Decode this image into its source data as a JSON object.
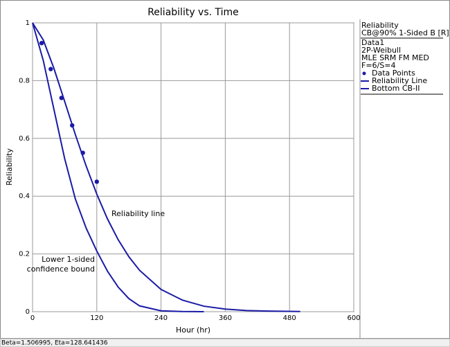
{
  "chart_data": {
    "type": "line",
    "title": "Reliability vs. Time",
    "x_label": "Hour (hr)",
    "y_label": "Reliability",
    "xlim": [
      0,
      600
    ],
    "ylim": [
      0,
      1
    ],
    "xticks": [
      0,
      120,
      240,
      360,
      480,
      600
    ],
    "yticks": [
      0,
      0.2,
      0.4,
      0.6,
      0.8,
      1
    ],
    "grid": true,
    "legend_header": [
      "Reliability",
      "CB@90% 1-Sided B [R]",
      "Data1",
      "2P-Weibull",
      "MLE SRM FM MED",
      "F=6/S=4"
    ],
    "series": [
      {
        "name": "Data Points",
        "type": "scatter",
        "color": "#1a1aa6",
        "x": [
          17,
          34,
          54,
          74,
          94,
          120
        ],
        "values": [
          0.93,
          0.84,
          0.74,
          0.645,
          0.55,
          0.45
        ]
      },
      {
        "name": "Reliability Line",
        "type": "line",
        "color": "#1a1aa6",
        "x": [
          0,
          20,
          40,
          60,
          80,
          100,
          120,
          140,
          160,
          180,
          200,
          240,
          280,
          320,
          360,
          400,
          440,
          500
        ],
        "values": [
          1,
          0.941,
          0.842,
          0.728,
          0.613,
          0.505,
          0.407,
          0.321,
          0.249,
          0.19,
          0.143,
          0.077,
          0.04,
          0.019,
          0.009,
          0.004,
          0.002,
          0.0006
        ]
      },
      {
        "name": "Bottom CB-II",
        "type": "line",
        "color": "#1a1aa6",
        "x": [
          0,
          20,
          40,
          60,
          80,
          100,
          120,
          140,
          160,
          180,
          200,
          240,
          280,
          320
        ],
        "values": [
          1,
          0.87,
          0.7,
          0.53,
          0.39,
          0.29,
          0.21,
          0.14,
          0.085,
          0.045,
          0.02,
          0.003,
          0.0005,
          0
        ]
      }
    ],
    "annotations": [
      "Reliability line",
      "Lower 1-sided",
      "confidence bound"
    ],
    "status": "Beta=1.506995, Eta=128.641436"
  }
}
